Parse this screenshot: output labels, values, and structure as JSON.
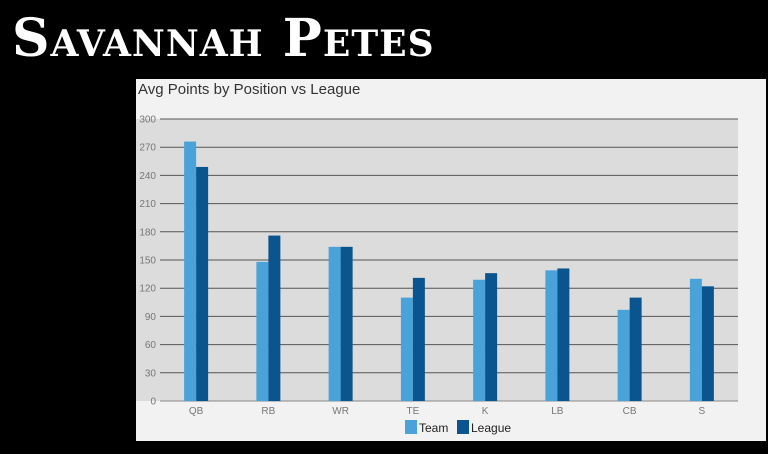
{
  "header": {
    "title": "Savannah Petes"
  },
  "chart_data": {
    "type": "bar",
    "title": "Avg Points by Position vs League",
    "xlabel": "",
    "ylabel": "",
    "ylim": [
      0,
      300
    ],
    "yticks": [
      0,
      30,
      60,
      90,
      120,
      150,
      180,
      210,
      240,
      270,
      300
    ],
    "categories": [
      "QB",
      "RB",
      "WR",
      "TE",
      "K",
      "LB",
      "CB",
      "S"
    ],
    "series": [
      {
        "name": "Team",
        "color": "#4aa3d8",
        "values": [
          276,
          148,
          164,
          110,
          129,
          139,
          97,
          130
        ]
      },
      {
        "name": "League",
        "color": "#0a5590",
        "values": [
          249,
          176,
          164,
          131,
          136,
          141,
          110,
          122
        ]
      }
    ],
    "grid": true,
    "legend": "bottom"
  }
}
